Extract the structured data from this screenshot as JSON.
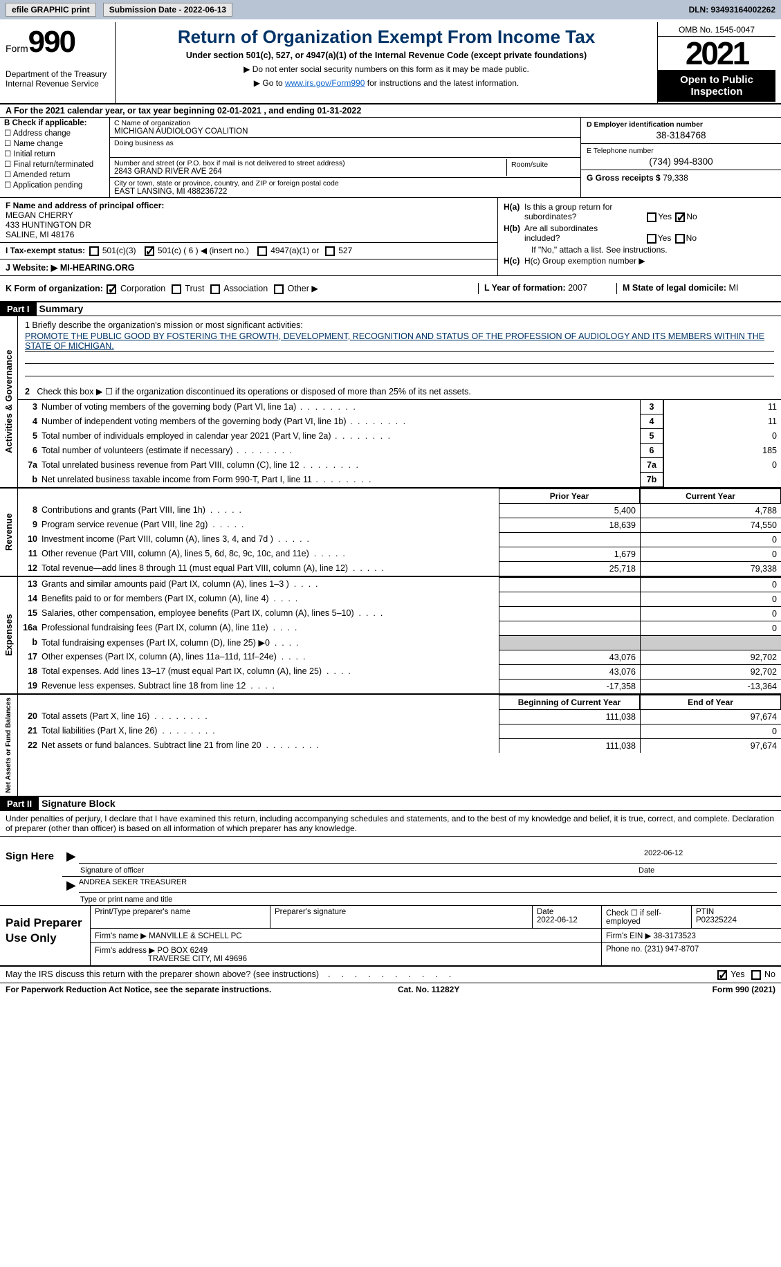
{
  "topbar": {
    "efile": "efile GRAPHIC print",
    "submission_label": "Submission Date - 2022-06-13",
    "dln": "DLN: 93493164002262"
  },
  "header": {
    "form_word": "Form",
    "form_no": "990",
    "dept": "Department of the Treasury Internal Revenue Service",
    "title": "Return of Organization Exempt From Income Tax",
    "subtitle": "Under section 501(c), 527, or 4947(a)(1) of the Internal Revenue Code (except private foundations)",
    "note1": "▶ Do not enter social security numbers on this form as it may be made public.",
    "note2_pre": "▶ Go to ",
    "note2_link": "www.irs.gov/Form990",
    "note2_post": " for instructions and the latest information.",
    "omb": "OMB No. 1545-0047",
    "year": "2021",
    "open": "Open to Public Inspection"
  },
  "rowA": "A  For the 2021 calendar year, or tax year beginning 02-01-2021  , and ending 01-31-2022",
  "colB": {
    "title": "B Check if applicable:",
    "items": [
      "Address change",
      "Name change",
      "Initial return",
      "Final return/terminated",
      "Amended return",
      "Application pending"
    ]
  },
  "colC": {
    "name_lbl": "C Name of organization",
    "name": "MICHIGAN AUDIOLOGY COALITION",
    "dba_lbl": "Doing business as",
    "addr_lbl": "Number and street (or P.O. box if mail is not delivered to street address)",
    "addr": "2843 GRAND RIVER AVE 264",
    "room_lbl": "Room/suite",
    "city_lbl": "City or town, state or province, country, and ZIP or foreign postal code",
    "city": "EAST LANSING, MI  488236722"
  },
  "colD": {
    "ein_lbl": "D Employer identification number",
    "ein": "38-3184768",
    "tel_lbl": "E Telephone number",
    "tel": "(734) 994-8300",
    "gross_lbl": "G Gross receipts $ ",
    "gross": "79,338"
  },
  "secF": {
    "lbl": "F Name and address of principal officer:",
    "name": "MEGAN CHERRY",
    "addr1": "433 HUNTINGTON DR",
    "addr2": "SALINE, MI  48176"
  },
  "secI": {
    "lbl": "I  Tax-exempt status:",
    "o1": "501(c)(3)",
    "o2": "501(c) ( 6 ) ◀ (insert no.)",
    "o3": "4947(a)(1) or",
    "o4": "527"
  },
  "secJ": {
    "lbl": "J  Website: ▶",
    "val": " MI-HEARING.ORG"
  },
  "secH": {
    "ha": "H(a)  Is this a group return for subordinates?",
    "hb": "H(b)  Are all subordinates included?",
    "hb_note": "If \"No,\" attach a list. See instructions.",
    "hc": "H(c)  Group exemption number ▶",
    "yes": "Yes",
    "no": "No"
  },
  "secK": {
    "lbl": "K Form of organization:",
    "o1": "Corporation",
    "o2": "Trust",
    "o3": "Association",
    "o4": "Other ▶"
  },
  "secL": {
    "lbl": "L Year of formation: ",
    "val": "2007"
  },
  "secM": {
    "lbl": "M State of legal domicile: ",
    "val": "MI"
  },
  "part1": {
    "hdr": "Part I",
    "title": "Summary"
  },
  "tabs": {
    "ag": "Activities & Governance",
    "rev": "Revenue",
    "exp": "Expenses",
    "nab": "Net Assets or Fund Balances"
  },
  "mission": {
    "lbl": "1   Briefly describe the organization's mission or most significant activities:",
    "txt": "PROMOTE THE PUBLIC GOOD BY FOSTERING THE GROWTH, DEVELOPMENT, RECOGNITION AND STATUS OF THE PROFESSION OF AUDIOLOGY AND ITS MEMBERS WITHIN THE STATE OF MICHIGAN."
  },
  "line2": "Check this box ▶ ☐ if the organization discontinued its operations or disposed of more than 25% of its net assets.",
  "govLines": [
    {
      "n": "3",
      "t": "Number of voting members of the governing body (Part VI, line 1a)",
      "k": "3",
      "v": "11"
    },
    {
      "n": "4",
      "t": "Number of independent voting members of the governing body (Part VI, line 1b)",
      "k": "4",
      "v": "11"
    },
    {
      "n": "5",
      "t": "Total number of individuals employed in calendar year 2021 (Part V, line 2a)",
      "k": "5",
      "v": "0"
    },
    {
      "n": "6",
      "t": "Total number of volunteers (estimate if necessary)",
      "k": "6",
      "v": "185"
    },
    {
      "n": "7a",
      "t": "Total unrelated business revenue from Part VIII, column (C), line 12",
      "k": "7a",
      "v": "0"
    },
    {
      "n": "b",
      "t": "Net unrelated business taxable income from Form 990-T, Part I, line 11",
      "k": "7b",
      "v": ""
    }
  ],
  "colHdr": {
    "prior": "Prior Year",
    "curr": "Current Year"
  },
  "revLines": [
    {
      "n": "8",
      "t": "Contributions and grants (Part VIII, line 1h)",
      "v1": "5,400",
      "v2": "4,788"
    },
    {
      "n": "9",
      "t": "Program service revenue (Part VIII, line 2g)",
      "v1": "18,639",
      "v2": "74,550"
    },
    {
      "n": "10",
      "t": "Investment income (Part VIII, column (A), lines 3, 4, and 7d )",
      "v1": "",
      "v2": "0"
    },
    {
      "n": "11",
      "t": "Other revenue (Part VIII, column (A), lines 5, 6d, 8c, 9c, 10c, and 11e)",
      "v1": "1,679",
      "v2": "0"
    },
    {
      "n": "12",
      "t": "Total revenue—add lines 8 through 11 (must equal Part VIII, column (A), line 12)",
      "v1": "25,718",
      "v2": "79,338"
    }
  ],
  "expLines": [
    {
      "n": "13",
      "t": "Grants and similar amounts paid (Part IX, column (A), lines 1–3 )",
      "v1": "",
      "v2": "0"
    },
    {
      "n": "14",
      "t": "Benefits paid to or for members (Part IX, column (A), line 4)",
      "v1": "",
      "v2": "0"
    },
    {
      "n": "15",
      "t": "Salaries, other compensation, employee benefits (Part IX, column (A), lines 5–10)",
      "v1": "",
      "v2": "0"
    },
    {
      "n": "16a",
      "t": "Professional fundraising fees (Part IX, column (A), line 11e)",
      "v1": "",
      "v2": "0"
    },
    {
      "n": "b",
      "t": "Total fundraising expenses (Part IX, column (D), line 25) ▶0",
      "v1": "SHADE",
      "v2": "SHADE"
    },
    {
      "n": "17",
      "t": "Other expenses (Part IX, column (A), lines 11a–11d, 11f–24e)",
      "v1": "43,076",
      "v2": "92,702"
    },
    {
      "n": "18",
      "t": "Total expenses. Add lines 13–17 (must equal Part IX, column (A), line 25)",
      "v1": "43,076",
      "v2": "92,702"
    },
    {
      "n": "19",
      "t": "Revenue less expenses. Subtract line 18 from line 12",
      "v1": "-17,358",
      "v2": "-13,364"
    }
  ],
  "nabHdr": {
    "b": "Beginning of Current Year",
    "e": "End of Year"
  },
  "nabLines": [
    {
      "n": "20",
      "t": "Total assets (Part X, line 16)",
      "v1": "111,038",
      "v2": "97,674"
    },
    {
      "n": "21",
      "t": "Total liabilities (Part X, line 26)",
      "v1": "",
      "v2": "0"
    },
    {
      "n": "22",
      "t": "Net assets or fund balances. Subtract line 21 from line 20",
      "v1": "111,038",
      "v2": "97,674"
    }
  ],
  "part2": {
    "hdr": "Part II",
    "title": "Signature Block"
  },
  "sigIntro": "Under penalties of perjury, I declare that I have examined this return, including accompanying schedules and statements, and to the best of my knowledge and belief, it is true, correct, and complete. Declaration of preparer (other than officer) is based on all information of which preparer has any knowledge.",
  "sign": {
    "here": "Sign Here",
    "sig_lbl": "Signature of officer",
    "date": "2022-06-12",
    "date_lbl": "Date",
    "name": "ANDREA SEKER  TREASURER",
    "name_lbl": "Type or print name and title"
  },
  "prep": {
    "title": "Paid Preparer Use Only",
    "pt_lbl": "Print/Type preparer's name",
    "sig_lbl": "Preparer's signature",
    "date_lbl": "Date",
    "date": "2022-06-12",
    "self_lbl": "Check ☐ if self-employed",
    "ptin_lbl": "PTIN",
    "ptin": "P02325224",
    "firm_name_lbl": "Firm's name    ▶",
    "firm_name": "MANVILLE & SCHELL PC",
    "firm_ein_lbl": "Firm's EIN ▶",
    "firm_ein": "38-3173523",
    "firm_addr_lbl": "Firm's address ▶",
    "firm_addr1": "PO BOX 6249",
    "firm_addr2": "TRAVERSE CITY, MI  49696",
    "phone_lbl": "Phone no. ",
    "phone": "(231) 947-8707"
  },
  "footer": {
    "q": "May the IRS discuss this return with the preparer shown above? (see instructions)",
    "yes": "Yes",
    "no": "No",
    "pra": "For Paperwork Reduction Act Notice, see the separate instructions.",
    "cat": "Cat. No. 11282Y",
    "form": "Form 990 (2021)"
  }
}
